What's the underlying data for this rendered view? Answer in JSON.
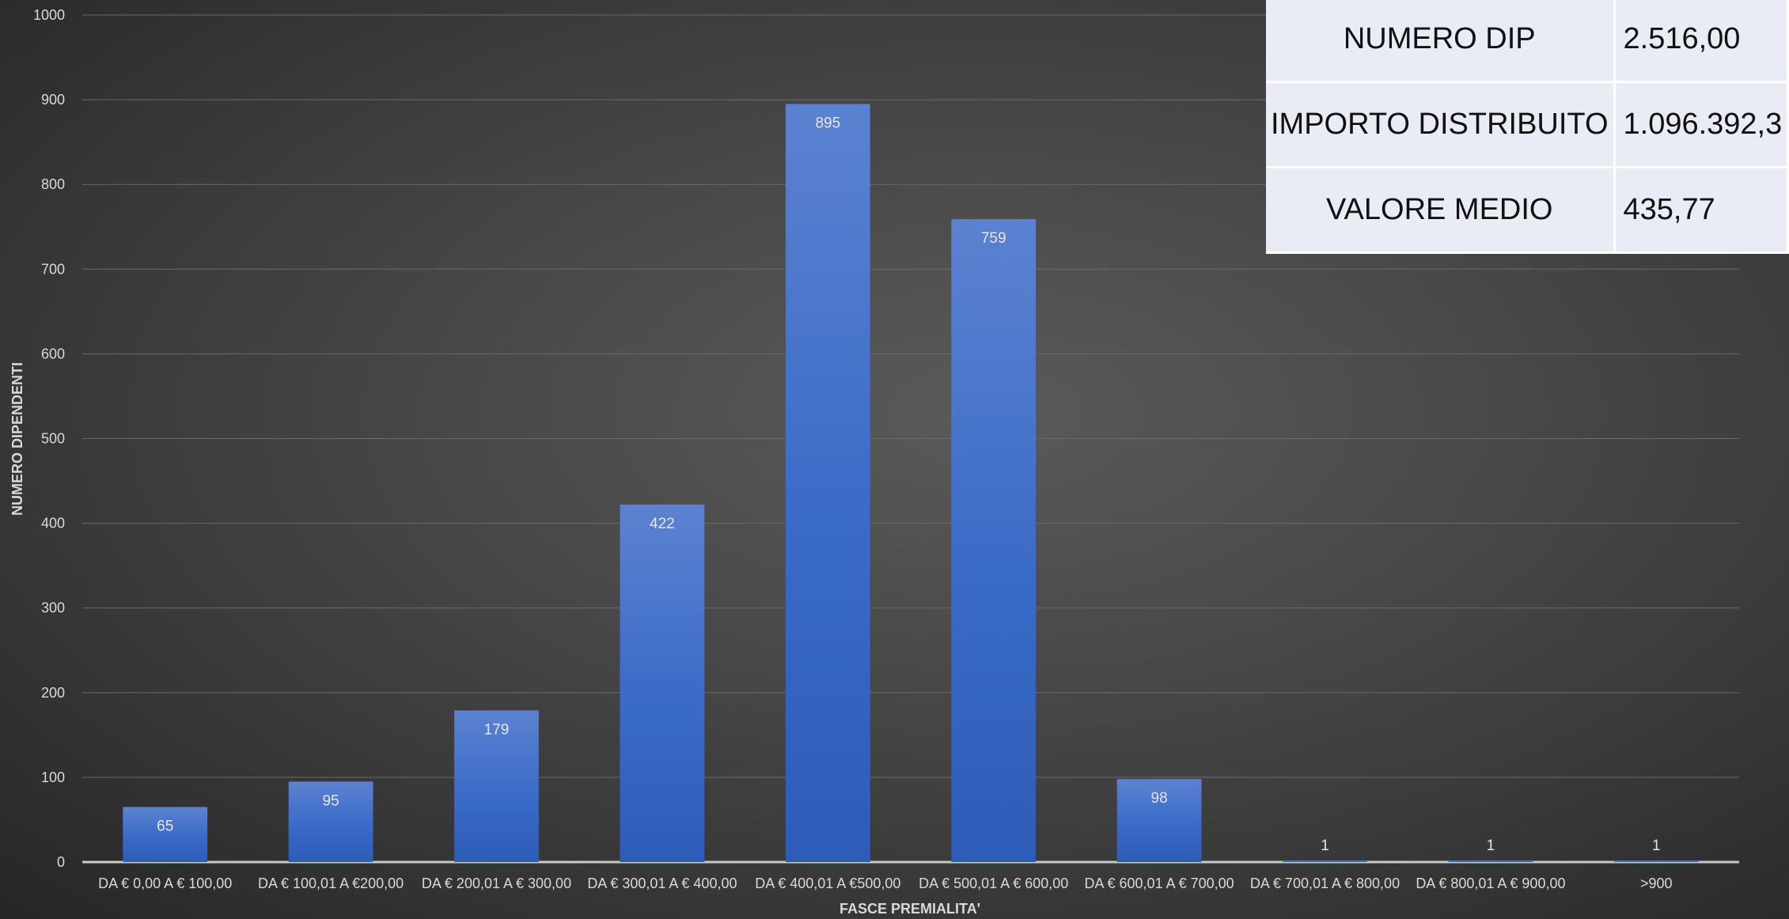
{
  "chart_data": {
    "type": "bar",
    "title": "",
    "xlabel": "FASCE PREMIALITA'",
    "ylabel": "NUMERO DIPENDENTI",
    "ylim": [
      0,
      1000
    ],
    "yticks": [
      0,
      100,
      200,
      300,
      400,
      500,
      600,
      700,
      800,
      900,
      1000
    ],
    "grid": true,
    "bar_color": "#4472c4",
    "categories": [
      "DA € 0,00 A € 100,00",
      "DA € 100,01 A €200,00",
      "DA € 200,01 A € 300,00",
      "DA € 300,01 A € 400,00",
      "DA € 400,01 A €500,00",
      "DA € 500,01 A € 600,00",
      "DA € 600,01 A € 700,00",
      "DA € 700,01 A € 800,00",
      "DA € 800,01 A € 900,00",
      ">900"
    ],
    "values": [
      65,
      95,
      179,
      422,
      895,
      759,
      98,
      1,
      1,
      1
    ]
  },
  "summary_table": [
    {
      "label": "NUMERO DIP",
      "value": "2.516,00"
    },
    {
      "label": "IMPORTO DISTRIBUITO",
      "value": "1.096.392,3"
    },
    {
      "label": "VALORE MEDIO",
      "value": "435,77"
    }
  ]
}
